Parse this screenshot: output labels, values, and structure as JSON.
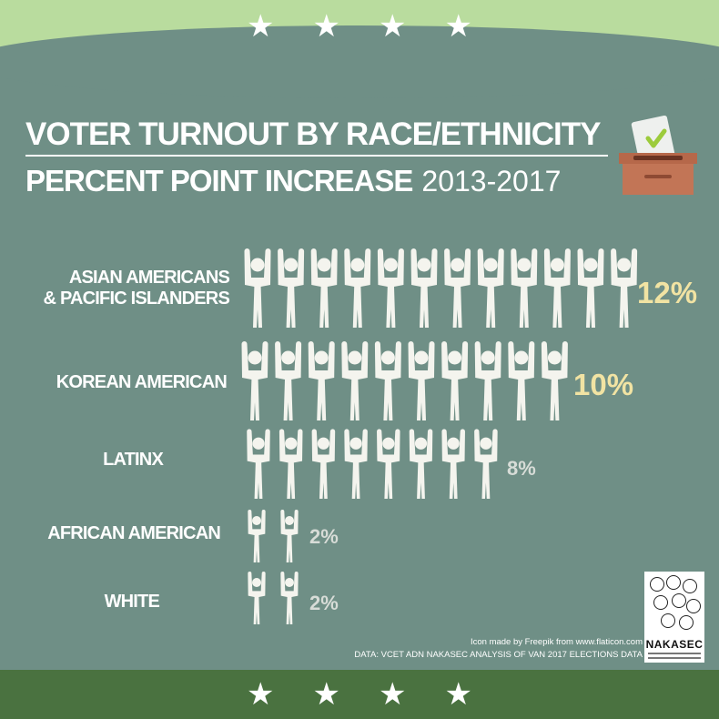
{
  "header": {
    "title_line1": "VOTER TURNOUT BY RACE/ETHNICITY",
    "title_line2": "PERCENT POINT INCREASE",
    "years": "2013-2017",
    "stars_count": 4,
    "ballot_icon": "ballot-box-icon"
  },
  "chart_data": {
    "type": "pictograph",
    "title": "VOTER TURNOUT BY RACE/ETHNICITY",
    "subtitle": "PERCENT POINT INCREASE 2013-2017",
    "unit_icon": "person-arms-raised-icon",
    "icon_unit_value": 1,
    "categories": [
      "ASIAN AMERICANS & PACIFIC ISLANDERS",
      "KOREAN AMERICAN",
      "LATINX",
      "AFRICAN AMERICAN",
      "WHITE"
    ],
    "values": [
      12,
      10,
      8,
      2,
      2
    ],
    "labels": [
      "12%",
      "10%",
      "8%",
      "2%",
      "2%"
    ]
  },
  "rows": [
    {
      "label_lines": [
        "ASIAN AMERICANS",
        "& PACIFIC ISLANDERS"
      ],
      "value_label": "12%"
    },
    {
      "label_lines": [
        "KOREAN AMERICAN"
      ],
      "value_label": "10%"
    },
    {
      "label_lines": [
        "LATINX"
      ],
      "value_label": "8%"
    },
    {
      "label_lines": [
        "AFRICAN AMERICAN"
      ],
      "value_label": "2%"
    },
    {
      "label_lines": [
        "WHITE"
      ],
      "value_label": "2%"
    }
  ],
  "footer": {
    "credit_line1": "Icon made by Freepik from www.flaticon.com",
    "credit_line2": "DATA: VCET ADN NAKASEC ANALYSIS OF VAN 2017 ELECTIONS DATA",
    "logo_name": "NAKASEC"
  },
  "colors": {
    "background": "#6f8f86",
    "top_band": "#b9dc9e",
    "bottom_band": "#4a7240",
    "highlight_value": "#f1e3a3",
    "muted_value": "#d7dcd7",
    "icon": "#f4f4ee"
  }
}
